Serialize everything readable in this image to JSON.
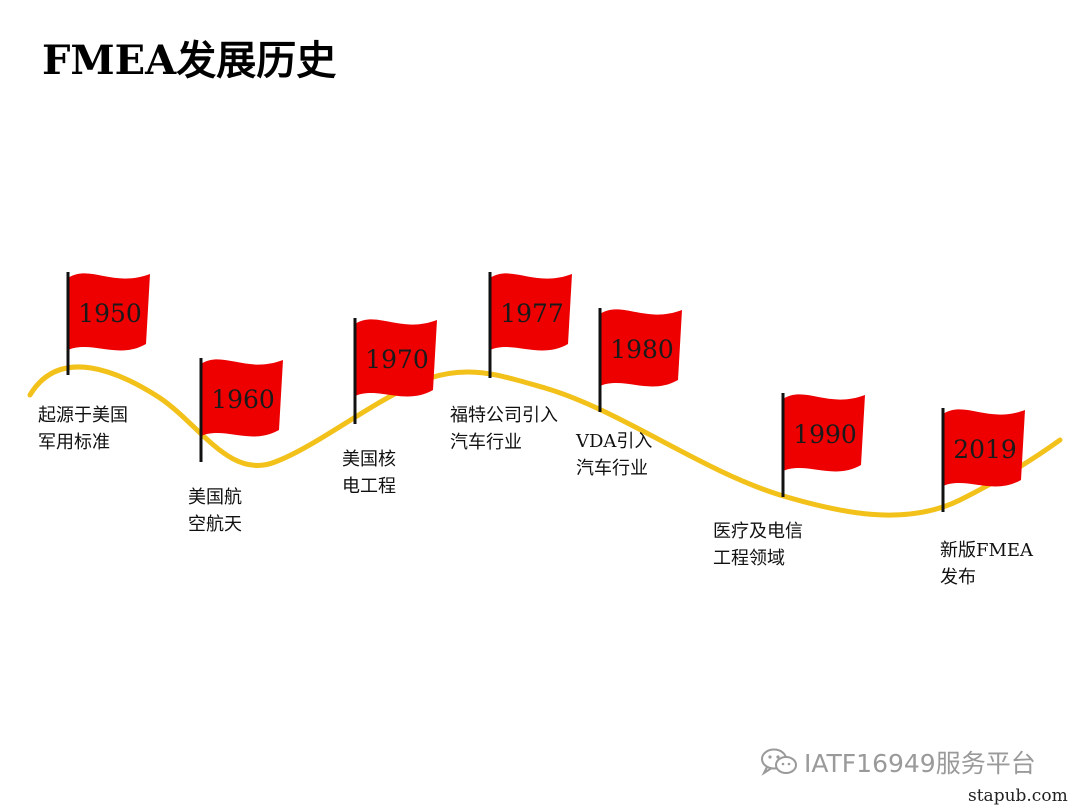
{
  "title": "FMEA发展历史",
  "colors": {
    "curve": "#f2c11a",
    "flag": "#ee0000",
    "pole": "#111111"
  },
  "milestones": [
    {
      "year": "1950",
      "caption": "起源于美国\n军用标准"
    },
    {
      "year": "1960",
      "caption": "美国航\n空航天"
    },
    {
      "year": "1970",
      "caption": "美国核\n电工程"
    },
    {
      "year": "1977",
      "caption": "福特公司引入\n汽车行业"
    },
    {
      "year": "1980",
      "caption": "VDA引入\n汽车行业"
    },
    {
      "year": "1990",
      "caption": "医疗及电信\n工程领域"
    },
    {
      "year": "2019",
      "caption": "新版FMEA\n发布"
    }
  ],
  "watermark": {
    "icon": "wechat-icon",
    "text": "IATF16949服务平台"
  },
  "source": "stapub.com"
}
